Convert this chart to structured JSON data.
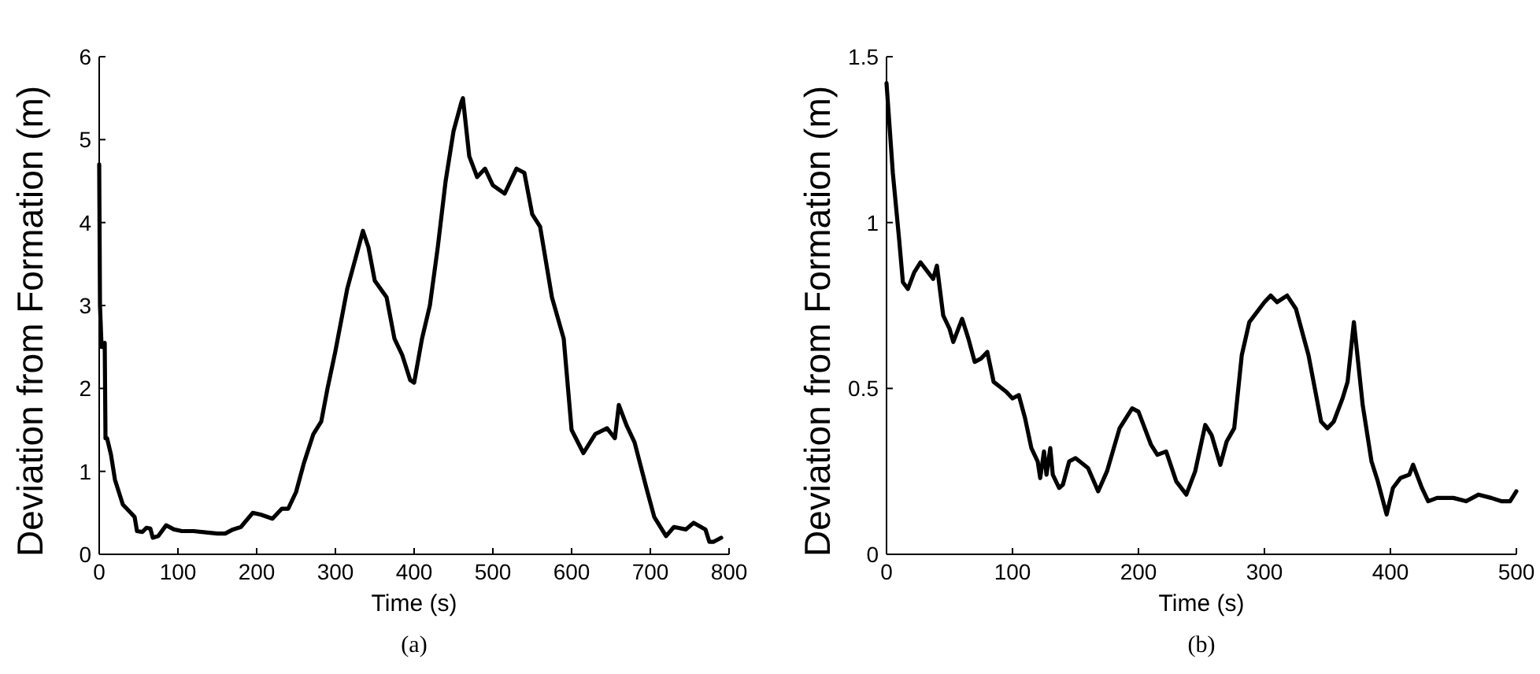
{
  "chart_data": [
    {
      "type": "line",
      "xlabel": "Time (s)",
      "ylabel": "Deviation from Formation (m)",
      "annotations": [
        "(a)"
      ],
      "xlim": [
        0,
        800
      ],
      "xticks": [
        0,
        100,
        200,
        300,
        400,
        500,
        600,
        700,
        800
      ],
      "ylim": [
        0,
        6
      ],
      "yticks": [
        0,
        1,
        2,
        3,
        4,
        5,
        6
      ],
      "grid": false,
      "marker": "none",
      "line_style": "solid",
      "series": [
        {
          "color": "#000000",
          "x": [
            0,
            1,
            3,
            5,
            7,
            8,
            10,
            15,
            20,
            30,
            40,
            45,
            48,
            55,
            60,
            65,
            68,
            75,
            85,
            95,
            105,
            120,
            150,
            160,
            170,
            180,
            195,
            205,
            220,
            232,
            240,
            250,
            260,
            272,
            282,
            290,
            300,
            315,
            325,
            335,
            342,
            350,
            365,
            375,
            385,
            395,
            400,
            410,
            420,
            430,
            440,
            450,
            460,
            462,
            470,
            480,
            490,
            500,
            515,
            530,
            540,
            550,
            560,
            575,
            590,
            600,
            615,
            630,
            645,
            655,
            660,
            670,
            680,
            695,
            705,
            720,
            730,
            745,
            755,
            770,
            775,
            780,
            790
          ],
          "values": [
            4.7,
            3.0,
            2.5,
            2.5,
            2.55,
            1.4,
            1.4,
            1.2,
            0.9,
            0.6,
            0.5,
            0.45,
            0.28,
            0.27,
            0.32,
            0.31,
            0.2,
            0.22,
            0.35,
            0.3,
            0.28,
            0.28,
            0.25,
            0.25,
            0.3,
            0.33,
            0.5,
            0.48,
            0.43,
            0.55,
            0.55,
            0.75,
            1.1,
            1.45,
            1.6,
            2.0,
            2.45,
            3.2,
            3.55,
            3.9,
            3.7,
            3.3,
            3.1,
            2.6,
            2.4,
            2.1,
            2.07,
            2.6,
            3.0,
            3.7,
            4.5,
            5.1,
            5.45,
            5.5,
            4.8,
            4.55,
            4.65,
            4.45,
            4.35,
            4.65,
            4.6,
            4.1,
            3.95,
            3.1,
            2.6,
            1.5,
            1.22,
            1.45,
            1.52,
            1.4,
            1.8,
            1.55,
            1.35,
            0.8,
            0.45,
            0.22,
            0.33,
            0.3,
            0.38,
            0.3,
            0.15,
            0.15,
            0.2
          ]
        }
      ]
    },
    {
      "type": "line",
      "xlabel": "Time (s)",
      "ylabel": "Deviation from Formation (m)",
      "annotations": [
        "(b)"
      ],
      "xlim": [
        0,
        500
      ],
      "xticks": [
        0,
        100,
        200,
        300,
        400,
        500
      ],
      "ylim": [
        0,
        1.5
      ],
      "yticks": [
        0,
        0.5,
        1,
        1.5
      ],
      "grid": false,
      "marker": "none",
      "line_style": "solid",
      "series": [
        {
          "color": "#000000",
          "x": [
            0,
            5,
            10,
            13,
            17,
            22,
            27,
            33,
            37,
            40,
            45,
            50,
            53,
            60,
            65,
            70,
            75,
            80,
            85,
            95,
            100,
            105,
            110,
            115,
            120,
            122,
            125,
            127,
            130,
            132,
            137,
            140,
            145,
            150,
            160,
            168,
            175,
            185,
            195,
            200,
            210,
            215,
            222,
            230,
            238,
            245,
            253,
            258,
            265,
            270,
            276,
            282,
            288,
            300,
            305,
            310,
            318,
            325,
            335,
            345,
            350,
            355,
            362,
            366,
            371,
            378,
            385,
            390,
            397,
            402,
            408,
            415,
            418,
            425,
            430,
            437,
            450,
            460,
            470,
            480,
            488,
            495,
            500
          ],
          "values": [
            1.42,
            1.15,
            0.95,
            0.82,
            0.8,
            0.85,
            0.88,
            0.85,
            0.83,
            0.87,
            0.72,
            0.68,
            0.64,
            0.71,
            0.65,
            0.58,
            0.59,
            0.61,
            0.52,
            0.49,
            0.47,
            0.48,
            0.41,
            0.32,
            0.28,
            0.23,
            0.31,
            0.24,
            0.32,
            0.24,
            0.2,
            0.21,
            0.28,
            0.29,
            0.26,
            0.19,
            0.25,
            0.38,
            0.44,
            0.43,
            0.33,
            0.3,
            0.31,
            0.22,
            0.18,
            0.25,
            0.39,
            0.36,
            0.27,
            0.34,
            0.38,
            0.6,
            0.7,
            0.76,
            0.78,
            0.76,
            0.78,
            0.74,
            0.6,
            0.4,
            0.38,
            0.4,
            0.47,
            0.52,
            0.7,
            0.45,
            0.28,
            0.22,
            0.12,
            0.2,
            0.23,
            0.24,
            0.27,
            0.2,
            0.16,
            0.17,
            0.17,
            0.16,
            0.18,
            0.17,
            0.16,
            0.16,
            0.19
          ]
        }
      ]
    }
  ]
}
